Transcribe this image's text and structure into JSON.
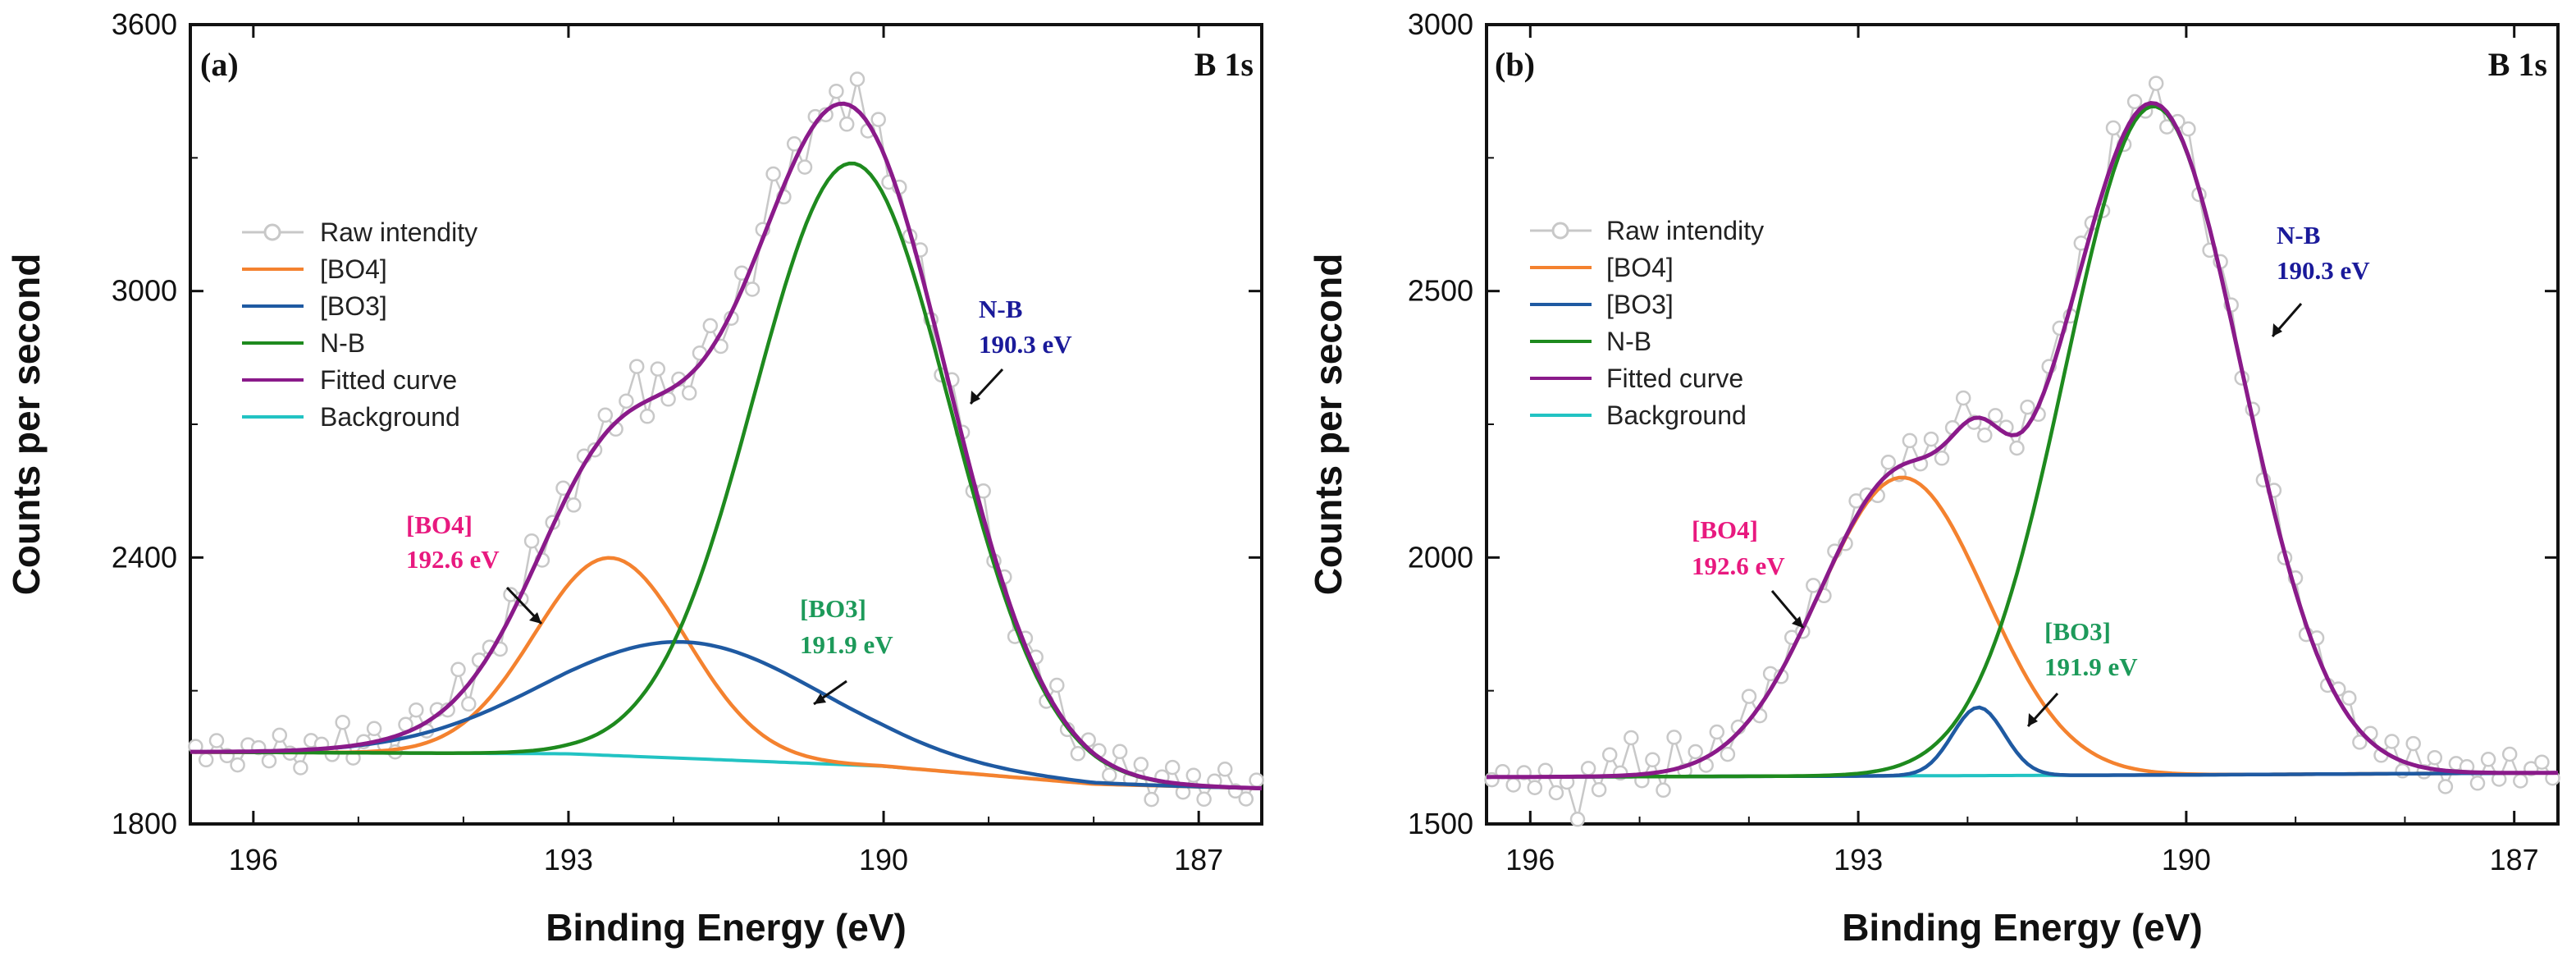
{
  "chart_data": [
    {
      "type": "line",
      "panel_label": "(a)",
      "spectrum_label": "B 1s",
      "xlabel": "Binding Energy (eV)",
      "ylabel": "Counts per second",
      "xlim": [
        196.6,
        186.4
      ],
      "ylim": [
        1800,
        3600
      ],
      "xticks": [
        196,
        193,
        190,
        187
      ],
      "yticks": [
        1800,
        2400,
        3000,
        3600
      ],
      "background": {
        "x": [
          196.6,
          193,
          190,
          188,
          186.4
        ],
        "y": [
          1962,
          1958,
          1930,
          1890,
          1880
        ]
      },
      "components": [
        {
          "name": "[BO4]",
          "color": "#f4822f",
          "peak": 192.6,
          "amp": 445,
          "width": 0.85
        },
        {
          "name": "[BO3]",
          "color": "#1f5aa2",
          "peak": 191.9,
          "amp": 262,
          "width": 1.55
        },
        {
          "name": "N-B",
          "color": "#1e8a1e",
          "peak": 190.3,
          "amp": 1355,
          "width": 1.1
        }
      ],
      "raw_noise": [
        12,
        -18,
        25,
        -9,
        -30,
        15,
        8,
        -22,
        35,
        -6,
        -40,
        20,
        10,
        -15,
        55,
        -28,
        5,
        30,
        -12,
        -35,
        18,
        40,
        -20,
        12,
        -8,
        60,
        -45,
        22,
        15,
        -30,
        48,
        -10,
        70,
        -25,
        8,
        35,
        -50,
        18,
        -5,
        42,
        -15,
        28,
        90,
        -35,
        60,
        -20,
        10,
        -40,
        25,
        55,
        -30,
        -12,
        38,
        -55,
        20,
        85,
        -25,
        40,
        -60,
        15,
        -8,
        30,
        -45,
        70,
        -18,
        50,
        -35,
        22,
        -10,
        45,
        -20,
        -50,
        35,
        12,
        -28,
        60,
        -15,
        25,
        -40,
        18,
        30,
        -22,
        55,
        -10,
        -35,
        20,
        15,
        -25,
        40,
        -12,
        28,
        -45,
        10,
        35,
        -18,
        22,
        -30,
        12,
        40,
        -8,
        -25,
        18
      ],
      "legend": [
        {
          "label": "Raw intendity",
          "color": "#c8c8c8",
          "marker": true
        },
        {
          "label": "[BO4]",
          "color": "#f4822f"
        },
        {
          "label": "[BO3]",
          "color": "#1f5aa2"
        },
        {
          "label": "N-B",
          "color": "#1e8a1e"
        },
        {
          "label": "Fitted curve",
          "color": "#8a1a8a"
        },
        {
          "label": "Background",
          "color": "#22c3c3"
        }
      ],
      "annotations": [
        {
          "line1": "N-B",
          "line2": "190.3 eV",
          "color": "#1a1a9a"
        },
        {
          "line1": "[BO4]",
          "line2": "192.6 eV",
          "color": "#e8197f"
        },
        {
          "line1": "[BO3]",
          "line2": "191.9 eV",
          "color": "#1d9a5a"
        }
      ]
    },
    {
      "type": "line",
      "panel_label": "(b)",
      "spectrum_label": "B 1s",
      "xlabel": "Binding Energy (eV)",
      "ylabel": "Counts per second",
      "xlim": [
        196.4,
        186.6
      ],
      "ylim": [
        1500,
        3000
      ],
      "xticks": [
        196,
        193,
        190,
        187
      ],
      "yticks": [
        1500,
        2000,
        2500,
        3000
      ],
      "background": {
        "x": [
          196.4,
          193,
          190,
          186.6
        ],
        "y": [
          1588,
          1590,
          1592,
          1596
        ]
      },
      "components": [
        {
          "name": "[BO4]",
          "color": "#f4822f",
          "peak": 192.6,
          "amp": 560,
          "width": 0.9
        },
        {
          "name": "[BO3]",
          "color": "#1f5aa2",
          "peak": 191.9,
          "amp": 128,
          "width": 0.28
        },
        {
          "name": "N-B",
          "color": "#1e8a1e",
          "peak": 190.3,
          "amp": 1255,
          "width": 0.95
        }
      ],
      "raw_noise": [
        -5,
        10,
        -15,
        8,
        -20,
        12,
        -30,
        -10,
        -80,
        15,
        -25,
        40,
        5,
        70,
        -12,
        25,
        -35,
        60,
        -8,
        20,
        -15,
        35,
        -22,
        10,
        45,
        -18,
        30,
        -10,
        25,
        -5,
        38,
        -25,
        15,
        -12,
        30,
        8,
        -20,
        22,
        -15,
        40,
        -10,
        28,
        -22,
        15,
        50,
        -8,
        -30,
        20,
        12,
        -25,
        35,
        -15,
        22,
        30,
        -18,
        45,
        10,
        -35,
        60,
        -20,
        25,
        -12,
        38,
        -28,
        15,
        50,
        -10,
        -40,
        22,
        30,
        -15,
        18,
        -25,
        40,
        -8,
        25,
        -18,
        30,
        -12,
        20,
        35,
        -22,
        15,
        -10,
        28,
        -18,
        40,
        -8,
        22,
        -30,
        15,
        10,
        -20,
        25,
        -12,
        35,
        -15,
        8,
        20,
        -10
      ],
      "legend": [
        {
          "label": "Raw intendity",
          "color": "#c8c8c8",
          "marker": true
        },
        {
          "label": "[BO4]",
          "color": "#f4822f"
        },
        {
          "label": "[BO3]",
          "color": "#1f5aa2"
        },
        {
          "label": "N-B",
          "color": "#1e8a1e"
        },
        {
          "label": "Fitted curve",
          "color": "#8a1a8a"
        },
        {
          "label": "Background",
          "color": "#22c3c3"
        }
      ],
      "annotations": [
        {
          "line1": "N-B",
          "line2": "190.3 eV",
          "color": "#1a1a9a"
        },
        {
          "line1": "[BO4]",
          "line2": "192.6 eV",
          "color": "#e8197f"
        },
        {
          "line1": "[BO3]",
          "line2": "191.9 eV",
          "color": "#1d9a5a"
        }
      ]
    }
  ],
  "styles": {
    "fitted_color": "#8a1a8a",
    "background_color": "#22c3c3",
    "raw_color": "#c8c8c8"
  }
}
